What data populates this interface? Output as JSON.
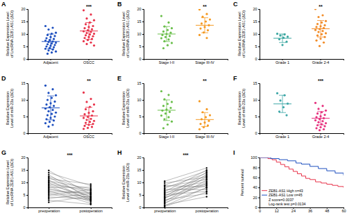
{
  "chart_data": [
    {
      "type": "strip",
      "title": "A",
      "ylabel": "Relative Expression Level of LncRNA ZEB1-AS1 (ΔCt)",
      "categories": [
        "Adjacent",
        "OSCC"
      ],
      "colors": [
        "#1d4fbf",
        "#e8334a"
      ],
      "values": [
        [
          13.2,
          12.5,
          11.8,
          10.5,
          10.1,
          9.6,
          9.2,
          8.8,
          8.3,
          8.0,
          7.6,
          7.3,
          7.0,
          6.8,
          6.5,
          6.2,
          5.9,
          5.6,
          5.3,
          5.0,
          4.7,
          4.4,
          4.1,
          3.8,
          3.4,
          3.0,
          2.6,
          2.1
        ],
        [
          19.5,
          17.8,
          16.2,
          15.5,
          14.6,
          13.9,
          13.2,
          12.8,
          12.3,
          11.9,
          11.5,
          11.1,
          10.8,
          10.4,
          10.1,
          9.8,
          9.5,
          9.1,
          8.8,
          8.4,
          8.0,
          7.6,
          7.1,
          6.6,
          6.0,
          5.4
        ]
      ],
      "means": [
        7.0,
        11.2
      ],
      "errors": [
        3.0,
        3.4
      ],
      "ylim": [
        0,
        20
      ],
      "yticks": [
        0,
        5,
        10,
        15,
        20
      ],
      "annotations": [
        "***"
      ]
    },
    {
      "type": "strip",
      "title": "B",
      "ylabel": "Relative Expression Level of LncRNA ZEB1-AS1 (ΔCt)",
      "categories": [
        "Stage I-II",
        "Stage III-IV"
      ],
      "colors": [
        "#6abf4b",
        "#f59a23"
      ],
      "values": [
        [
          17.2,
          14.6,
          13.0,
          12.3,
          11.6,
          11.0,
          10.5,
          10.0,
          9.6,
          9.2,
          8.8,
          8.3,
          7.8,
          7.1,
          6.4,
          5.5,
          4.3
        ],
        [
          19.8,
          18.0,
          16.9,
          15.8,
          15.0,
          14.2,
          13.5,
          12.8,
          12.2,
          11.5,
          10.6,
          9.6,
          8.4
        ]
      ],
      "means": [
        10.0,
        13.5
      ],
      "errors": [
        3.0,
        3.0
      ],
      "ylim": [
        0,
        20
      ],
      "yticks": [
        0,
        5,
        10,
        15,
        20
      ],
      "annotations": [
        "**"
      ]
    },
    {
      "type": "strip",
      "title": "C",
      "ylabel": "Relative Expression Level of LncRNA ZEB1-AS1 (ΔCt)",
      "categories": [
        "Grade 1",
        "Grade 2-4"
      ],
      "colors": [
        "#3aa6a0",
        "#f28c28"
      ],
      "values": [
        [
          10.1,
          9.8,
          9.4,
          8.9,
          8.5,
          7.9,
          6.9,
          5.6
        ],
        [
          20.0,
          17.5,
          16.8,
          15.2,
          14.6,
          14.0,
          13.5,
          13.1,
          12.8,
          12.4,
          12.0,
          11.6,
          11.2,
          10.8,
          10.3,
          9.9,
          9.4,
          8.8,
          8.1,
          7.4,
          6.6,
          5.2
        ]
      ],
      "means": [
        8.3,
        12.1
      ],
      "errors": [
        1.7,
        3.3
      ],
      "ylim": [
        0,
        20
      ],
      "yticks": [
        0,
        5,
        10,
        15,
        20
      ],
      "annotations": [
        "**"
      ]
    },
    {
      "type": "strip",
      "title": "D",
      "ylabel": "Relative Expression Level of miR-23a (ΔCt)",
      "categories": [
        "Adjacent",
        "OSCC"
      ],
      "colors": [
        "#1d4fbf",
        "#e8334a"
      ],
      "values": [
        [
          14.3,
          13.2,
          12.1,
          11.4,
          10.6,
          10.0,
          9.5,
          9.0,
          8.6,
          8.2,
          7.8,
          7.4,
          7.0,
          6.6,
          6.2,
          5.8,
          5.4,
          5.0,
          4.6,
          4.2,
          3.8,
          3.4,
          3.0,
          2.5,
          2.0
        ],
        [
          12.2,
          10.3,
          9.4,
          8.6,
          7.9,
          7.2,
          6.6,
          6.1,
          5.7,
          5.3,
          4.9,
          4.6,
          4.3,
          4.0,
          3.7,
          3.4,
          3.1,
          2.8,
          2.5,
          2.2,
          1.9,
          1.6,
          1.3
        ]
      ],
      "means": [
        7.6,
        5.2
      ],
      "errors": [
        3.6,
        2.6
      ],
      "ylim": [
        0,
        15
      ],
      "yticks": [
        0,
        5,
        10,
        15
      ],
      "annotations": [
        "**"
      ]
    },
    {
      "type": "strip",
      "title": "E",
      "ylabel": "Relative Expression Level of miR-23a (ΔCt)",
      "categories": [
        "Stage I-II",
        "Stage III-IV"
      ],
      "colors": [
        "#6abf4b",
        "#f59a23"
      ],
      "values": [
        [
          12.6,
          11.5,
          10.2,
          9.4,
          8.8,
          8.2,
          7.6,
          7.1,
          6.8,
          6.4,
          5.9,
          5.3,
          4.8,
          4.2,
          3.5,
          2.6,
          1.5
        ],
        [
          9.6,
          7.2,
          6.3,
          5.4,
          4.8,
          4.2,
          3.7,
          3.2,
          2.8,
          2.3,
          1.8,
          1.2
        ]
      ],
      "means": [
        6.9,
        4.1
      ],
      "errors": [
        3.1,
        2.1
      ],
      "ylim": [
        0,
        15
      ],
      "yticks": [
        0,
        5,
        10,
        15
      ],
      "annotations": [
        "**"
      ]
    },
    {
      "type": "strip",
      "title": "F",
      "ylabel": "Relative Expression Level of miR-23a (ΔCt)",
      "categories": [
        "Grade 1",
        "Grade 2-4"
      ],
      "colors": [
        "#3fa7a8",
        "#e6337f"
      ],
      "values": [
        [
          12.0,
          11.4,
          9.8,
          8.9,
          7.8,
          6.5,
          5.4
        ],
        [
          9.1,
          8.2,
          7.3,
          6.8,
          6.3,
          5.9,
          5.5,
          5.1,
          4.8,
          4.5,
          4.2,
          3.9,
          3.6,
          3.3,
          3.0,
          2.7,
          2.4,
          2.1,
          1.8,
          1.5,
          1.2,
          0.9
        ]
      ],
      "means": [
        8.8,
        4.5
      ],
      "errors": [
        2.6,
        2.0
      ],
      "ylim": [
        0,
        15
      ],
      "yticks": [
        0,
        5,
        10,
        15
      ],
      "annotations": [
        "***"
      ]
    },
    {
      "type": "paired",
      "title": "G",
      "ylabel": "Relative Expression Level of LncRNA ZEB1-AS1 (ΔCt)",
      "categories": [
        "preoperation",
        "postoperation"
      ],
      "color": "#000000",
      "values": [
        [
          14.8,
          13.9,
          13.1,
          12.4,
          12.0,
          11.5,
          11.0,
          10.6,
          10.2,
          9.8,
          9.3,
          8.9,
          8.5,
          8.0,
          7.6,
          7.1,
          6.7,
          6.2,
          5.8,
          5.3,
          4.8,
          4.2,
          3.6,
          2.9,
          2.1
        ],
        [
          5.1,
          8.7,
          3.2,
          6.4,
          4.0,
          9.3,
          2.6,
          7.5,
          5.8,
          3.0,
          6.9,
          4.5,
          2.2,
          8.1,
          3.7,
          5.3,
          1.6,
          6.0,
          4.1,
          2.9,
          7.2,
          3.4,
          5.5,
          1.2,
          4.6
        ]
      ],
      "ylim": [
        0,
        20
      ],
      "yticks": [
        0,
        5,
        10,
        15,
        20
      ],
      "annotations": [
        "***"
      ]
    },
    {
      "type": "paired",
      "title": "H",
      "ylabel": "Relative Expression Level of miR-23a (ΔCt)",
      "categories": [
        "preoperation",
        "postoperation"
      ],
      "color": "#000000",
      "values": [
        [
          10.5,
          9.8,
          9.0,
          8.7,
          8.3,
          7.7,
          7.2,
          6.8,
          6.3,
          5.9,
          5.5,
          5.1,
          4.7,
          4.3,
          4.0,
          3.9,
          3.5,
          3.1,
          2.7,
          2.3,
          1.9,
          1.5,
          1.0,
          0.6,
          0.3
        ],
        [
          15.8,
          12.1,
          14.6,
          8.3,
          11.2,
          13.7,
          7.1,
          10.4,
          15.0,
          9.2,
          12.8,
          6.4,
          11.7,
          14.1,
          8.8,
          10.0,
          13.2,
          5.5,
          9.6,
          12.4,
          7.8,
          11.0,
          4.3,
          8.0,
          6.2
        ]
      ],
      "ylim": [
        0,
        20
      ],
      "yticks": [
        0,
        5,
        10,
        15,
        20
      ],
      "annotations": [
        "***"
      ]
    },
    {
      "type": "line",
      "line_style": "step",
      "title": "I",
      "ylabel": "Percent survival",
      "series": [
        {
          "name": "ZEB1-AS1 High n=43",
          "color": "#e8334a",
          "x": [
            0,
            6,
            9,
            12,
            15,
            18,
            21,
            24,
            27,
            30,
            33,
            36,
            40,
            44,
            48,
            52,
            56,
            60
          ],
          "values": [
            100,
            97.7,
            95.3,
            90.7,
            86.0,
            81.4,
            76.7,
            72.1,
            67.4,
            62.8,
            58.1,
            55.8,
            51.2,
            48.8,
            46.5,
            44.2,
            41.9,
            39.5
          ]
        },
        {
          "name": "ZEB1-AS1 Low n=45",
          "color": "#1d4fbf",
          "x": [
            0,
            8,
            14,
            20,
            26,
            30,
            36,
            42,
            48,
            54,
            60
          ],
          "values": [
            100,
            97.8,
            95.6,
            93.3,
            88.9,
            86.7,
            82.2,
            77.8,
            73.3,
            68.9,
            64.4
          ]
        }
      ],
      "xlim": [
        0,
        60
      ],
      "xticks": [
        0,
        12,
        24,
        36,
        48,
        60
      ],
      "ylim": [
        0,
        100
      ],
      "yticks": [
        0,
        20,
        40,
        60,
        80,
        100
      ],
      "legend": "lower left",
      "annotations": [
        "Z score=0.0037",
        "Log-rank test p=0.0134"
      ]
    }
  ]
}
